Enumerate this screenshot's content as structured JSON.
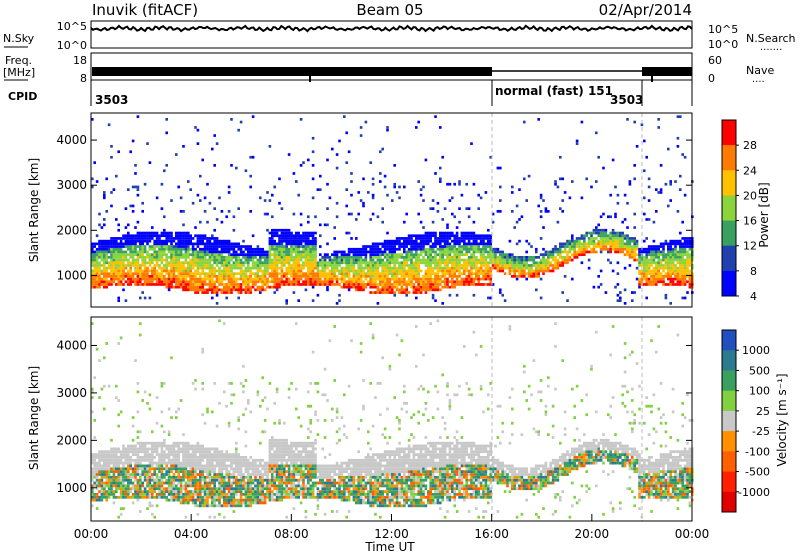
{
  "header": {
    "station": "Inuvik (fitACF)",
    "beam": "Beam 05",
    "date": "02/Apr/2014"
  },
  "noise_panel": {
    "left_label": "N.Sky",
    "left_ticks": [
      "10^5",
      "10^0"
    ],
    "right_label": "N.Search",
    "right_ticks": [
      "10^5",
      "10^0"
    ],
    "trace_color": "#000000"
  },
  "freq_panel": {
    "left_label_top": "Freq.",
    "left_label_unit": "[MHz]",
    "left_ticks": [
      "18",
      "8"
    ],
    "right_label": "Nave",
    "right_ticks": [
      "60",
      "0"
    ]
  },
  "cpid_panel": {
    "label": "CPID",
    "segments": [
      {
        "start_hour": 0,
        "end_hour": 16,
        "text": "3503"
      },
      {
        "start_hour": 16,
        "end_hour": 21.8,
        "text": "normal (fast) 151"
      },
      {
        "start_hour": 21.8,
        "end_hour": 24,
        "text": "3503"
      }
    ]
  },
  "chart_data": [
    {
      "type": "heatmap",
      "name": "power",
      "title": "",
      "xlabel": "",
      "ylabel": "Slant Range [km]",
      "xlim": [
        0,
        24
      ],
      "ylim": [
        300,
        4600
      ],
      "y_ticks": [
        1000,
        2000,
        3000,
        4000
      ],
      "colorbar": {
        "label": "Power [dB]",
        "ticks": [
          "28",
          "24",
          "20",
          "16",
          "12",
          "8",
          "4"
        ],
        "colors": [
          "#ff0000",
          "#ff7a00",
          "#ffc000",
          "#8cd43c",
          "#3aa060",
          "#2040b0",
          "#0000ff"
        ],
        "range": [
          0,
          30
        ]
      },
      "mode_change_hours": [
        16,
        21.8
      ]
    },
    {
      "type": "heatmap",
      "name": "velocity",
      "title": "",
      "xlabel": "Time UT",
      "ylabel": "Slant Range [km]",
      "xlim": [
        0,
        24
      ],
      "ylim": [
        300,
        4600
      ],
      "y_ticks": [
        1000,
        2000,
        3000,
        4000
      ],
      "x_ticks": [
        "00:00",
        "04:00",
        "08:00",
        "12:00",
        "16:00",
        "20:00",
        "00:00"
      ],
      "colorbar": {
        "label": "Velocity [m s⁻¹]",
        "ticks": [
          "1000",
          "500",
          "100",
          "25",
          "-25",
          "-100",
          "-500",
          "-1000"
        ],
        "colors": [
          "#2050c0",
          "#2a7a90",
          "#3aa060",
          "#80d040",
          "#c8c8c8",
          "#ff9000",
          "#ff6000",
          "#ff2000",
          "#e00000"
        ],
        "range": [
          -1000,
          1000
        ]
      },
      "mode_change_hours": [
        16,
        21.8
      ]
    }
  ]
}
